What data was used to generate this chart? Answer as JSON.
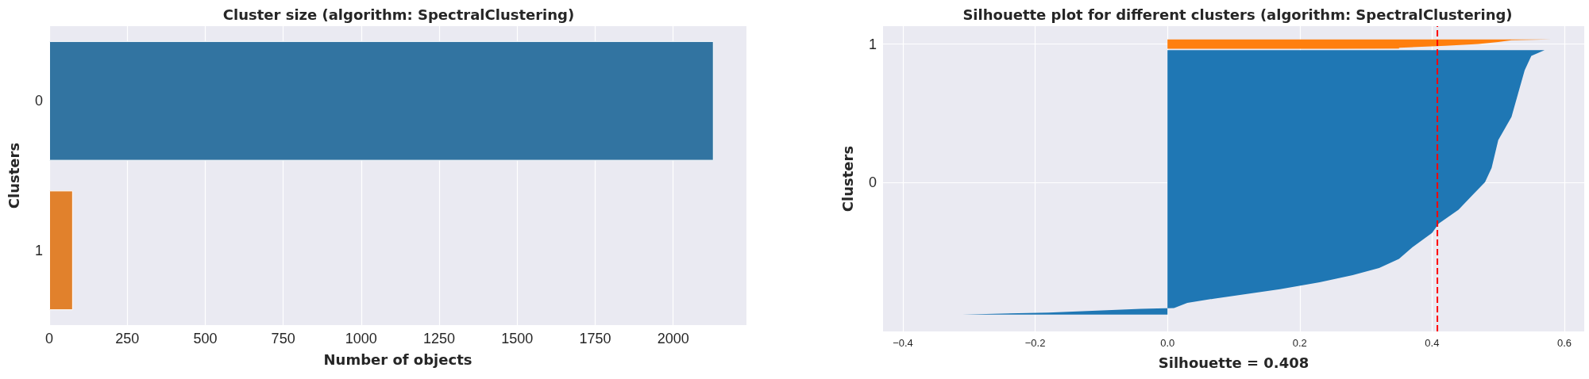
{
  "chart_data": [
    {
      "type": "bar",
      "orientation": "horizontal",
      "title": "Cluster size (algorithm: SpectralClustering)",
      "xlabel": "Number of objects",
      "ylabel": "Clusters",
      "categories": [
        "0",
        "1"
      ],
      "values": [
        2130,
        76
      ],
      "colors": [
        "#3274a1",
        "#e1812c"
      ],
      "xlim": [
        0,
        2235
      ],
      "xticks": [
        0,
        250,
        500,
        750,
        1000,
        1250,
        1500,
        1750,
        2000
      ],
      "grid": "x"
    },
    {
      "type": "area",
      "orientation": "horizontal",
      "title": "Silhouette plot for different clusters (algorithm: SpectralClustering)",
      "xlabel": "Silhouette = 0.408",
      "ylabel": "Clusters",
      "xlim": [
        -0.43,
        0.63
      ],
      "xticks": [
        {
          "value": -0.4,
          "label": "−0.4"
        },
        {
          "value": -0.2,
          "label": "−0.2"
        },
        {
          "value": 0,
          "label": "0.0"
        },
        {
          "value": 0.2,
          "label": "0.2"
        },
        {
          "value": 0.4,
          "label": "0.4"
        },
        {
          "value": 0.6,
          "label": "0.6"
        }
      ],
      "ylim": [
        -1.08,
        1.13
      ],
      "yticks": [
        0,
        1
      ],
      "grid": true,
      "series": [
        {
          "color": "#1f77b4",
          "x": [
            -0.958,
            -0.943,
            -0.916,
            -0.91,
            -0.874,
            -0.843,
            -0.809,
            -0.774,
            -0.724,
            -0.673,
            -0.621,
            -0.555,
            -0.471,
            -0.367,
            -0.299,
            -0.199,
            -0.098,
            0,
            0.104,
            0.305,
            0.473,
            0.642,
            0.812,
            0.915,
            0.957
          ],
          "values": [
            -0.31,
            -0.18,
            -0.04,
            0.01,
            0.03,
            0.07,
            0.12,
            0.17,
            0.23,
            0.28,
            0.32,
            0.35,
            0.37,
            0.4,
            0.41,
            0.44,
            0.46,
            0.48,
            0.49,
            0.5,
            0.52,
            0.53,
            0.54,
            0.55,
            0.57
          ]
        },
        {
          "color": "#ff7f0e",
          "x": [
            0.966,
            0.968,
            0.974,
            0.988,
            1.001,
            1.015,
            1.028,
            1.034
          ],
          "values": [
            0.25,
            0.35,
            0.35,
            0.42,
            0.47,
            0.5,
            0.52,
            0.58
          ]
        }
      ],
      "ref_lines": [
        {
          "axis": "x",
          "value": 0.408,
          "color": "#ff0000",
          "line_style": "dashed"
        }
      ]
    }
  ]
}
